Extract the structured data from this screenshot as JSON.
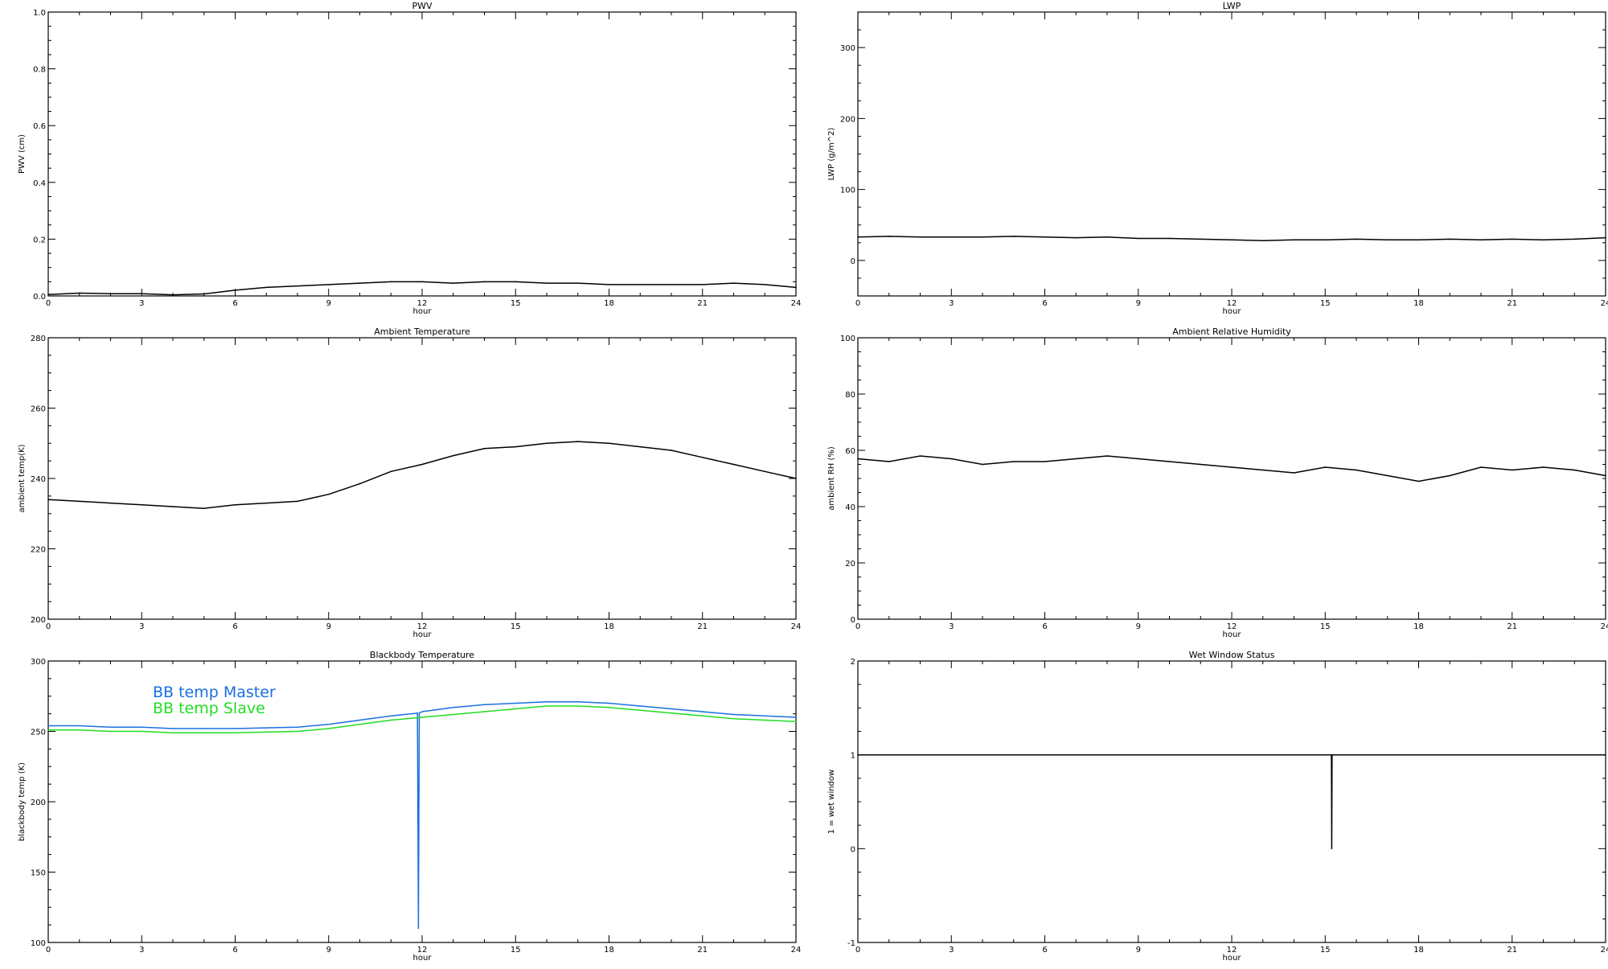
{
  "chart_data": [
    {
      "type": "line",
      "title": "PWV",
      "xlabel": "hour",
      "ylabel": "PWV (cm)",
      "xlim": [
        0,
        24
      ],
      "ylim": [
        0,
        1
      ],
      "xticks": [
        "0",
        "3",
        "6",
        "9",
        "12",
        "15",
        "18",
        "21",
        "24"
      ],
      "yticks": [
        "0.0",
        "0.2",
        "0.4",
        "0.6",
        "0.8",
        "1.0"
      ],
      "grid": false,
      "series": [
        {
          "color": "#000000",
          "x": [
            0,
            1,
            2,
            3,
            4,
            5,
            6,
            7,
            8,
            9,
            10,
            11,
            12,
            13,
            14,
            15,
            16,
            17,
            18,
            19,
            20,
            21,
            22,
            23,
            24
          ],
          "values": [
            0.005,
            0.01,
            0.008,
            0.008,
            0.004,
            0.007,
            0.02,
            0.03,
            0.035,
            0.04,
            0.045,
            0.05,
            0.05,
            0.045,
            0.05,
            0.05,
            0.045,
            0.045,
            0.04,
            0.04,
            0.04,
            0.04,
            0.045,
            0.04,
            0.03
          ]
        }
      ]
    },
    {
      "type": "line",
      "title": "LWP",
      "xlabel": "hour",
      "ylabel": "LWP (g/m^2)",
      "xlim": [
        0,
        24
      ],
      "ylim": [
        -50,
        350
      ],
      "xticks": [
        "0",
        "3",
        "6",
        "9",
        "12",
        "15",
        "18",
        "21",
        "24"
      ],
      "yticks": [
        "0",
        "100",
        "200",
        "300"
      ],
      "grid": false,
      "series": [
        {
          "color": "#000000",
          "x": [
            0,
            1,
            2,
            3,
            4,
            5,
            6,
            7,
            8,
            9,
            10,
            11,
            12,
            13,
            14,
            15,
            16,
            17,
            18,
            19,
            20,
            21,
            22,
            23,
            24
          ],
          "values": [
            33,
            34,
            33,
            33,
            33,
            34,
            33,
            32,
            33,
            31,
            31,
            30,
            29,
            28,
            29,
            29,
            30,
            29,
            29,
            30,
            29,
            30,
            29,
            30,
            32
          ]
        }
      ]
    },
    {
      "type": "line",
      "title": "Ambient Temperature",
      "xlabel": "hour",
      "ylabel": "ambient temp(K)",
      "xlim": [
        0,
        24
      ],
      "ylim": [
        200,
        280
      ],
      "xticks": [
        "0",
        "3",
        "6",
        "9",
        "12",
        "15",
        "18",
        "21",
        "24"
      ],
      "yticks": [
        "200",
        "220",
        "240",
        "260",
        "280"
      ],
      "grid": false,
      "series": [
        {
          "color": "#000000",
          "x": [
            0,
            1,
            2,
            3,
            4,
            5,
            6,
            7,
            8,
            9,
            10,
            11,
            12,
            13,
            14,
            15,
            16,
            17,
            18,
            19,
            20,
            21,
            22,
            23,
            24
          ],
          "values": [
            234,
            233.5,
            233,
            232.5,
            232,
            231.5,
            232.5,
            233,
            233.5,
            235.5,
            238.5,
            242,
            244,
            246.5,
            248.5,
            249,
            250,
            250.5,
            250,
            249,
            248,
            246,
            244,
            242,
            240
          ]
        }
      ]
    },
    {
      "type": "line",
      "title": "Ambient Relative Humidity",
      "xlabel": "hour",
      "ylabel": "ambient RH (%)",
      "xlim": [
        0,
        24
      ],
      "ylim": [
        0,
        100
      ],
      "xticks": [
        "0",
        "3",
        "6",
        "9",
        "12",
        "15",
        "18",
        "21",
        "24"
      ],
      "yticks": [
        "0",
        "20",
        "40",
        "60",
        "80",
        "100"
      ],
      "grid": false,
      "series": [
        {
          "color": "#000000",
          "x": [
            0,
            1,
            2,
            3,
            4,
            5,
            6,
            7,
            8,
            9,
            10,
            11,
            12,
            13,
            14,
            15,
            16,
            17,
            18,
            19,
            20,
            21,
            22,
            23,
            24
          ],
          "values": [
            57,
            56,
            58,
            57,
            55,
            56,
            56,
            57,
            58,
            57,
            56,
            55,
            54,
            53,
            52,
            54,
            53,
            51,
            49,
            51,
            54,
            53,
            54,
            53,
            51
          ]
        }
      ]
    },
    {
      "type": "line",
      "title": "Blackbody Temperature",
      "xlabel": "hour",
      "ylabel": "blackbody temp (K)",
      "xlim": [
        0,
        24
      ],
      "ylim": [
        100,
        300
      ],
      "xticks": [
        "0",
        "3",
        "6",
        "9",
        "12",
        "15",
        "18",
        "21",
        "24"
      ],
      "yticks": [
        "100",
        "150",
        "200",
        "250",
        "300"
      ],
      "grid": false,
      "legend": "top-left",
      "series": [
        {
          "name": "BB temp Master",
          "color": "#1a6fe0",
          "x": [
            0,
            1,
            2,
            3,
            4,
            5,
            6,
            7,
            8,
            9,
            10,
            11,
            11.85,
            11.88,
            11.91,
            12,
            13,
            14,
            15,
            16,
            17,
            18,
            19,
            20,
            21,
            22,
            23,
            24
          ],
          "values": [
            254,
            254,
            253,
            253,
            252,
            252,
            252,
            252.5,
            253,
            255,
            258,
            261,
            263,
            110,
            263,
            264,
            267,
            269,
            270,
            271,
            271,
            270,
            268,
            266,
            264,
            262,
            261,
            260
          ]
        },
        {
          "name": "BB temp Slave",
          "color": "#22dd22",
          "x": [
            0,
            1,
            2,
            3,
            4,
            5,
            6,
            7,
            8,
            9,
            10,
            11,
            12,
            13,
            14,
            15,
            16,
            17,
            18,
            19,
            20,
            21,
            22,
            23,
            24
          ],
          "values": [
            251,
            251,
            250,
            250,
            249,
            249,
            249,
            249.5,
            250,
            252,
            255,
            258,
            260,
            262,
            264,
            266,
            268,
            268,
            267,
            265,
            263,
            261,
            259,
            258,
            257
          ]
        }
      ]
    },
    {
      "type": "line",
      "title": "Wet Window Status",
      "xlabel": "hour",
      "ylabel": "1 = wet window",
      "xlim": [
        0,
        24
      ],
      "ylim": [
        -1,
        2
      ],
      "xticks": [
        "0",
        "3",
        "6",
        "9",
        "12",
        "15",
        "18",
        "21",
        "24"
      ],
      "yticks": [
        "-1",
        "0",
        "1",
        "2"
      ],
      "grid": false,
      "series": [
        {
          "color": "#000000",
          "x": [
            0,
            15.2,
            15.21,
            15.22,
            24
          ],
          "values": [
            1,
            1,
            0,
            1,
            1
          ]
        }
      ]
    }
  ]
}
